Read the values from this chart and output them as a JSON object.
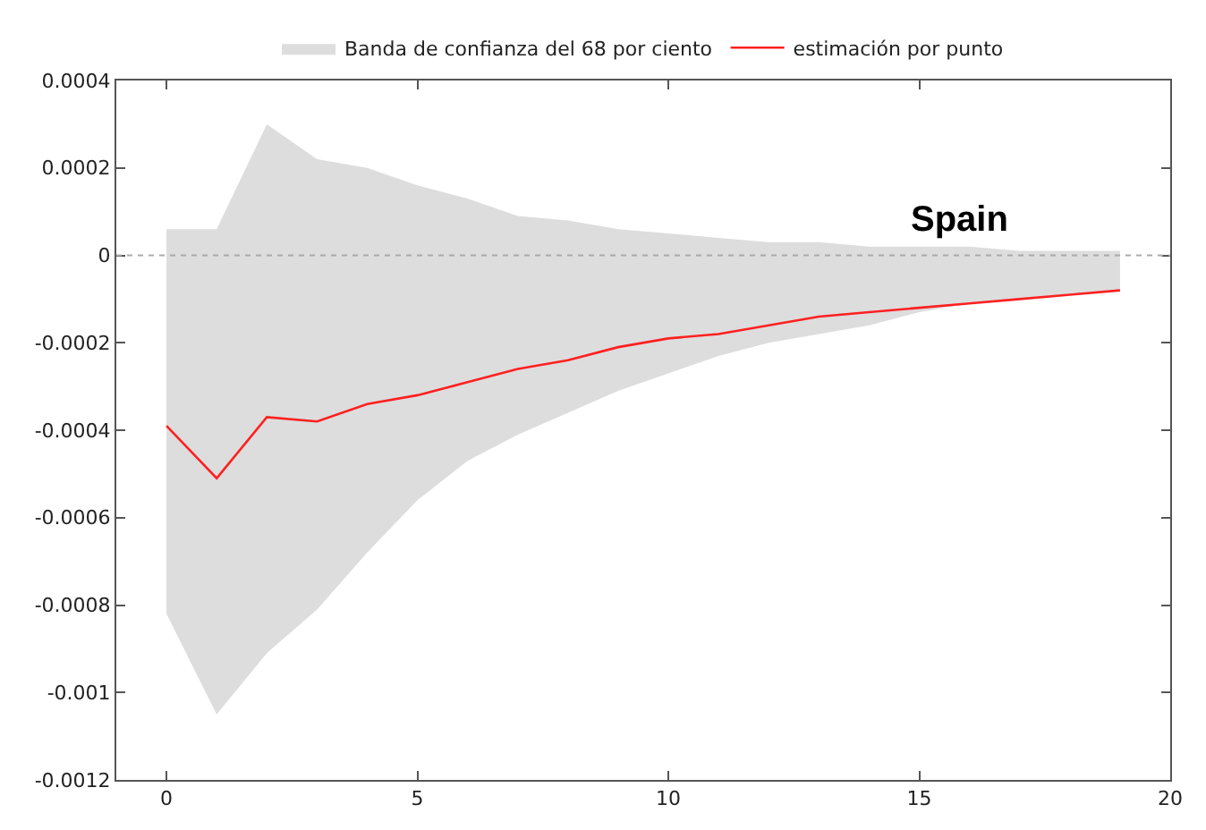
{
  "chart_data": {
    "type": "line",
    "title": "Spain",
    "annotations": [
      "Banda de confianza del 68 por ciento"
    ],
    "x": [
      0,
      1,
      2,
      3,
      4,
      5,
      6,
      7,
      8,
      9,
      10,
      11,
      12,
      13,
      14,
      15,
      16,
      17,
      18,
      19
    ],
    "series": [
      {
        "name": "estimación por punto",
        "type": "line",
        "color": "#ff2020",
        "values": [
          -0.00039,
          -0.00051,
          -0.00037,
          -0.00038,
          -0.00034,
          -0.00032,
          -0.00029,
          -0.00026,
          -0.00024,
          -0.00021,
          -0.00019,
          -0.00018,
          -0.00016,
          -0.00014,
          -0.00013,
          -0.00012,
          -0.00011,
          -0.0001,
          -9e-05,
          -8e-05
        ],
        "lower": [
          -0.00082,
          -0.00105,
          -0.00091,
          -0.00081,
          -0.00068,
          -0.00056,
          -0.00047,
          -0.00041,
          -0.00036,
          -0.00031,
          -0.00027,
          -0.00023,
          -0.0002,
          -0.00018,
          -0.00016,
          -0.00013,
          -0.00011,
          -0.0001,
          -9e-05,
          -8e-05
        ],
        "upper": [
          6e-05,
          6e-05,
          0.0003,
          0.00022,
          0.0002,
          0.00016,
          0.00013,
          9e-05,
          8e-05,
          6e-05,
          5e-05,
          4e-05,
          3e-05,
          3e-05,
          2e-05,
          2e-05,
          2e-05,
          1e-05,
          1e-05,
          1e-05
        ]
      }
    ],
    "xlim": [
      -1,
      20
    ],
    "xticks": [
      0,
      5,
      10,
      15,
      20
    ],
    "ylim": [
      -0.0012,
      0.0004
    ],
    "yticks": [
      -0.0012,
      -0.001,
      -0.0008,
      -0.0006,
      -0.0004,
      -0.0002,
      0,
      0.0002,
      0.0004
    ],
    "ref_lines": [
      {
        "axis": "y",
        "value": 0,
        "color": "#aaaaaa",
        "line_style": "dotted"
      }
    ],
    "grid": false,
    "legend": "top",
    "marker": "none",
    "line_style": "solid"
  }
}
